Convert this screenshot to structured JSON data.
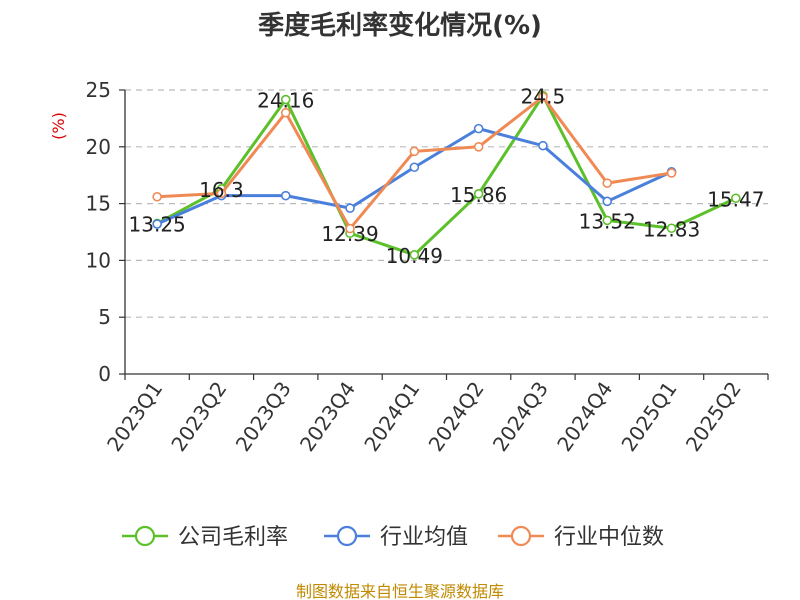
{
  "chart_data": {
    "type": "line",
    "title": "季度毛利率变化情况(%)",
    "ylabel": "(%)",
    "categories": [
      "2023Q1",
      "2023Q2",
      "2023Q3",
      "2023Q4",
      "2024Q1",
      "2024Q2",
      "2024Q3",
      "2024Q4",
      "2025Q1",
      "2025Q2"
    ],
    "ylim": [
      0,
      25
    ],
    "yticks": [
      0,
      5,
      10,
      15,
      20,
      25
    ],
    "grid": true,
    "legend_position": "bottom",
    "series": [
      {
        "name": "公司毛利率",
        "color": "#5cc02a",
        "values": [
          13.25,
          16.3,
          24.16,
          12.39,
          10.49,
          15.86,
          24.5,
          13.52,
          12.83,
          15.47
        ],
        "show_labels": true
      },
      {
        "name": "行业均值",
        "color": "#4a80dc",
        "values": [
          13.2,
          15.7,
          15.7,
          14.6,
          18.2,
          21.6,
          20.1,
          15.2,
          17.8,
          null
        ],
        "show_labels": false
      },
      {
        "name": "行业中位数",
        "color": "#f08a55",
        "values": [
          15.6,
          15.9,
          23.0,
          12.8,
          19.6,
          20.0,
          24.4,
          16.8,
          17.7,
          null
        ],
        "show_labels": false
      }
    ]
  },
  "source": "制图数据来自恒生聚源数据库"
}
